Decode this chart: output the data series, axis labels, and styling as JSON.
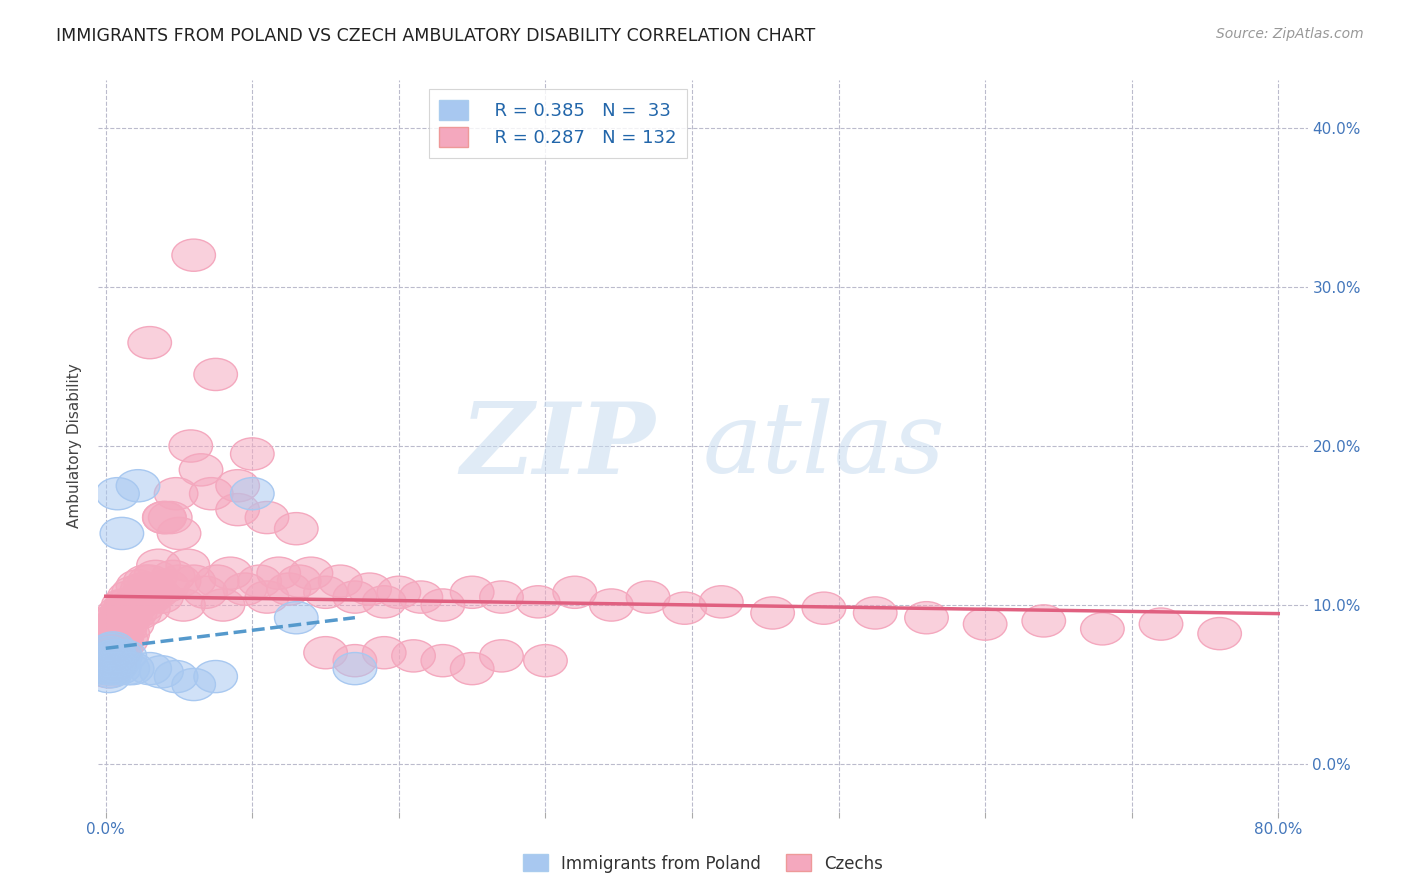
{
  "title": "IMMIGRANTS FROM POLAND VS CZECH AMBULATORY DISABILITY CORRELATION CHART",
  "source": "Source: ZipAtlas.com",
  "ylabel": "Ambulatory Disability",
  "xlim": [
    -0.005,
    0.82
  ],
  "ylim": [
    -0.03,
    0.43
  ],
  "xticks": [
    0.0,
    0.1,
    0.2,
    0.3,
    0.4,
    0.5,
    0.6,
    0.7,
    0.8
  ],
  "yticks": [
    0.0,
    0.1,
    0.2,
    0.3,
    0.4
  ],
  "ytick_labels_right": [
    "0.0%",
    "10.0%",
    "20.0%",
    "30.0%",
    "40.0%"
  ],
  "background_color": "#ffffff",
  "legend_r1": "R = 0.385",
  "legend_n1": "N =  33",
  "legend_r2": "R = 0.287",
  "legend_n2": "N = 132",
  "color_poland": "#A8C8F0",
  "color_czech": "#F4A8BE",
  "trendline_color_poland": "#5599CC",
  "trendline_color_czech": "#E06080",
  "figsize": [
    14.06,
    8.92
  ],
  "dpi": 100,
  "poland_x": [
    0.001,
    0.002,
    0.002,
    0.003,
    0.003,
    0.003,
    0.004,
    0.004,
    0.004,
    0.005,
    0.005,
    0.005,
    0.006,
    0.006,
    0.007,
    0.007,
    0.008,
    0.008,
    0.009,
    0.01,
    0.011,
    0.013,
    0.015,
    0.018,
    0.022,
    0.03,
    0.038,
    0.048,
    0.06,
    0.075,
    0.1,
    0.13,
    0.17
  ],
  "poland_y": [
    0.06,
    0.055,
    0.065,
    0.058,
    0.062,
    0.07,
    0.06,
    0.065,
    0.072,
    0.068,
    0.06,
    0.073,
    0.062,
    0.068,
    0.065,
    0.062,
    0.17,
    0.065,
    0.06,
    0.068,
    0.145,
    0.068,
    0.06,
    0.06,
    0.175,
    0.06,
    0.058,
    0.055,
    0.05,
    0.055,
    0.17,
    0.092,
    0.06
  ],
  "czech_x": [
    0.001,
    0.001,
    0.002,
    0.002,
    0.002,
    0.003,
    0.003,
    0.003,
    0.003,
    0.004,
    0.004,
    0.004,
    0.004,
    0.005,
    0.005,
    0.005,
    0.005,
    0.006,
    0.006,
    0.006,
    0.006,
    0.007,
    0.007,
    0.007,
    0.007,
    0.008,
    0.008,
    0.008,
    0.009,
    0.009,
    0.009,
    0.01,
    0.01,
    0.01,
    0.011,
    0.011,
    0.012,
    0.012,
    0.013,
    0.013,
    0.014,
    0.014,
    0.015,
    0.015,
    0.016,
    0.017,
    0.018,
    0.018,
    0.019,
    0.02,
    0.021,
    0.022,
    0.023,
    0.024,
    0.025,
    0.026,
    0.027,
    0.028,
    0.029,
    0.03,
    0.031,
    0.032,
    0.034,
    0.035,
    0.036,
    0.038,
    0.04,
    0.042,
    0.044,
    0.046,
    0.048,
    0.05,
    0.053,
    0.056,
    0.058,
    0.06,
    0.065,
    0.068,
    0.072,
    0.076,
    0.08,
    0.085,
    0.09,
    0.095,
    0.1,
    0.105,
    0.11,
    0.118,
    0.125,
    0.132,
    0.14,
    0.15,
    0.16,
    0.17,
    0.18,
    0.19,
    0.2,
    0.215,
    0.23,
    0.25,
    0.27,
    0.295,
    0.32,
    0.345,
    0.37,
    0.395,
    0.42,
    0.455,
    0.49,
    0.525,
    0.56,
    0.6,
    0.64,
    0.68,
    0.72,
    0.76,
    0.03,
    0.04,
    0.05,
    0.06,
    0.075,
    0.09,
    0.11,
    0.13,
    0.15,
    0.17,
    0.19,
    0.21,
    0.23,
    0.25,
    0.27,
    0.3
  ],
  "czech_y": [
    0.06,
    0.07,
    0.058,
    0.065,
    0.072,
    0.068,
    0.075,
    0.062,
    0.08,
    0.07,
    0.065,
    0.078,
    0.085,
    0.075,
    0.068,
    0.08,
    0.09,
    0.072,
    0.085,
    0.078,
    0.062,
    0.08,
    0.088,
    0.075,
    0.07,
    0.085,
    0.092,
    0.078,
    0.07,
    0.082,
    0.095,
    0.078,
    0.085,
    0.072,
    0.095,
    0.08,
    0.09,
    0.1,
    0.085,
    0.095,
    0.078,
    0.1,
    0.09,
    0.082,
    0.105,
    0.095,
    0.1,
    0.088,
    0.108,
    0.095,
    0.1,
    0.112,
    0.095,
    0.105,
    0.11,
    0.1,
    0.115,
    0.105,
    0.098,
    0.115,
    0.105,
    0.11,
    0.118,
    0.108,
    0.125,
    0.105,
    0.155,
    0.112,
    0.155,
    0.118,
    0.17,
    0.115,
    0.1,
    0.125,
    0.2,
    0.115,
    0.185,
    0.108,
    0.17,
    0.115,
    0.1,
    0.12,
    0.175,
    0.11,
    0.195,
    0.115,
    0.105,
    0.12,
    0.11,
    0.115,
    0.12,
    0.108,
    0.115,
    0.105,
    0.11,
    0.102,
    0.108,
    0.105,
    0.1,
    0.108,
    0.105,
    0.102,
    0.108,
    0.1,
    0.105,
    0.098,
    0.102,
    0.095,
    0.098,
    0.095,
    0.092,
    0.088,
    0.09,
    0.085,
    0.088,
    0.082,
    0.265,
    0.155,
    0.145,
    0.32,
    0.245,
    0.16,
    0.155,
    0.148,
    0.07,
    0.065,
    0.07,
    0.068,
    0.065,
    0.06,
    0.068,
    0.065
  ]
}
